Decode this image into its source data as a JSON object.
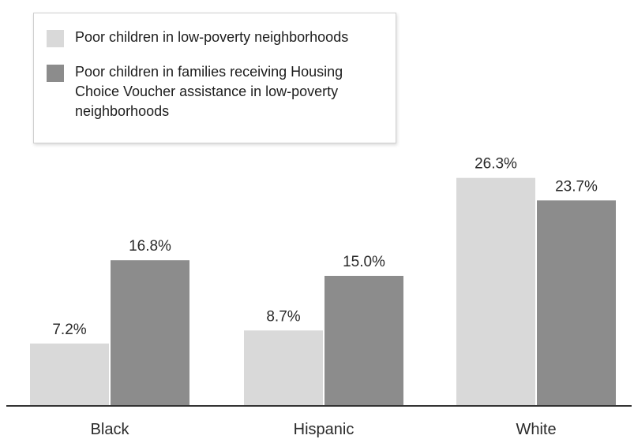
{
  "chart_data": {
    "type": "bar",
    "categories": [
      "Black",
      "Hispanic",
      "White"
    ],
    "series": [
      {
        "name": "Poor children in low-poverty neighborhoods",
        "values": [
          7.2,
          8.7,
          26.3
        ],
        "labels": [
          "7.2%",
          "8.7%",
          "26.3%"
        ],
        "color": "#d9d9d9"
      },
      {
        "name": "Poor children in families receiving Housing Choice Voucher assistance in low-poverty neighborhoods",
        "values": [
          16.8,
          15.0,
          23.7
        ],
        "labels": [
          "16.8%",
          "15.0%",
          "23.7%"
        ],
        "color": "#8c8c8c"
      }
    ],
    "ylim": [
      0,
      32
    ],
    "grid": false,
    "legend_position": "top-left",
    "title": "",
    "xlabel": "",
    "ylabel": ""
  },
  "legend": {
    "items": [
      {
        "lines": "Poor children in low-poverty neighborhoods",
        "color": "#d9d9d9"
      },
      {
        "lines": "Poor children in families receiving Housing Choice Voucher assistance in low-poverty neighborhoods",
        "color": "#8c8c8c"
      }
    ]
  }
}
